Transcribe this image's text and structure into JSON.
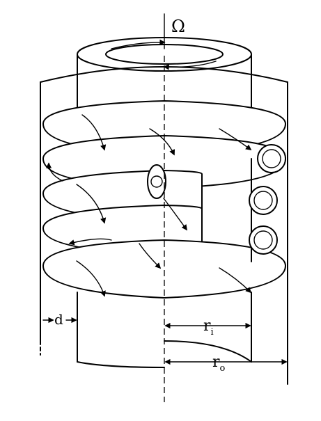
{
  "figure": {
    "rotation_label": "Ω",
    "gap_label": "d",
    "inner_radius_label": "r",
    "inner_radius_sub": "i",
    "outer_radius_label": "r",
    "outer_radius_sub": "o"
  },
  "colors": {
    "stroke": "#000000",
    "background": "#ffffff"
  }
}
